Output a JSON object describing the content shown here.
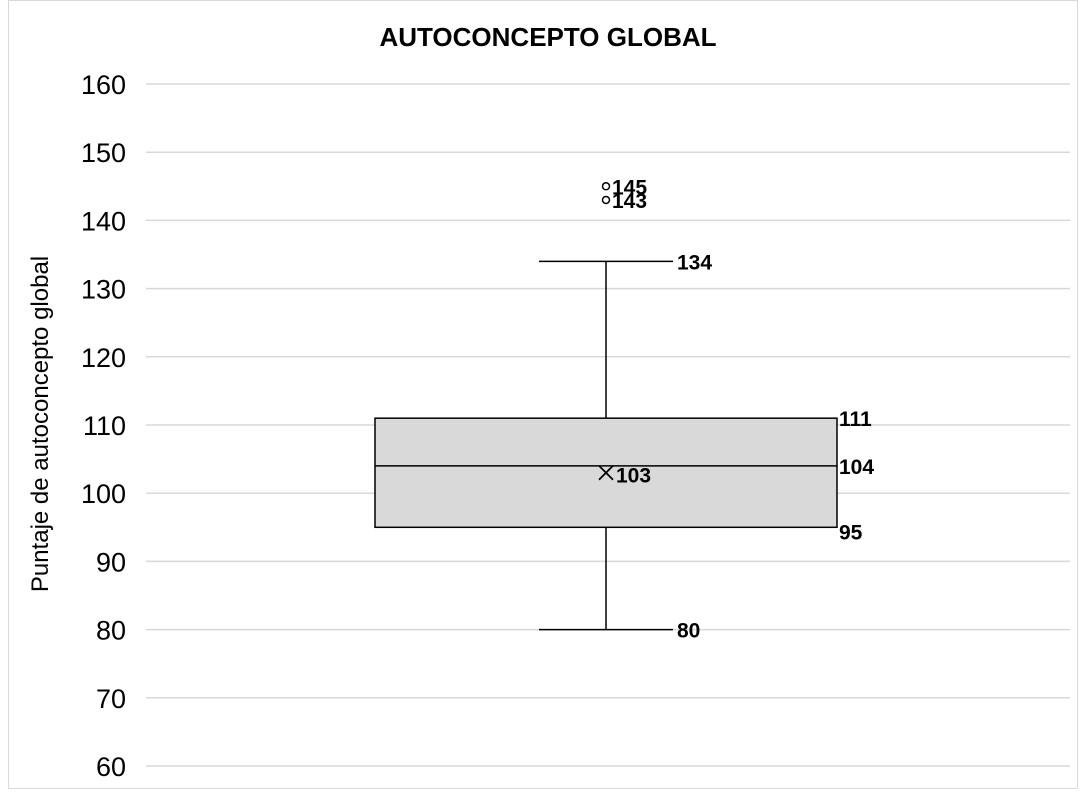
{
  "chart_data": {
    "type": "box",
    "title": "AUTOCONCEPTO GLOBAL",
    "ylabel": "Puntaje de autoconcepto global",
    "xlabel": "",
    "ylim": [
      60,
      160
    ],
    "yticks": [
      60,
      70,
      80,
      90,
      100,
      110,
      120,
      130,
      140,
      150,
      160
    ],
    "grid": true,
    "box": {
      "min": 80,
      "q1": 95,
      "median": 104,
      "q3": 111,
      "max": 134,
      "mean": 103,
      "outliers": [
        143,
        145
      ]
    },
    "data_labels": {
      "max": "134",
      "q3": "111",
      "median": "104",
      "mean": "103",
      "q1": "95",
      "min": "80",
      "outliers": [
        "143",
        "145"
      ]
    },
    "colors": {
      "box_fill": "#d9d9d9",
      "stroke": "#000000",
      "grid": "#d9d9d9"
    }
  }
}
